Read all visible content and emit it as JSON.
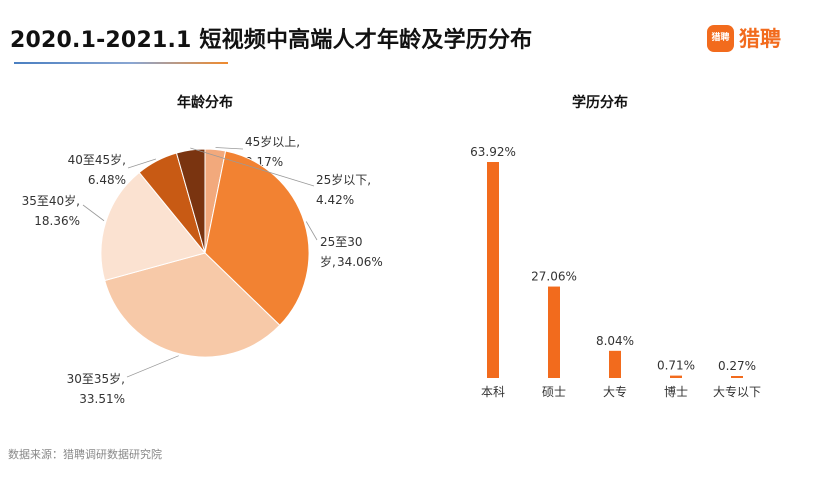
{
  "header": {
    "title": "2020.1-2021.1 短视频中高端人才年龄及学历分布",
    "logo_icon_text": "猎聘",
    "logo_text": "猎聘",
    "brand_color": "#f26b1d"
  },
  "chart_data": [
    {
      "type": "pie",
      "title": "年龄分布",
      "slices": [
        {
          "label": "45岁以上,",
          "value_label": "3.17%",
          "value": 3.17,
          "color": "#f2a97c"
        },
        {
          "label": "25至30",
          "label2": "岁,",
          "value_label": "34.06%",
          "value": 34.06,
          "color": "#f28232"
        },
        {
          "label": "30至35岁,",
          "value_label": "33.51%",
          "value": 33.51,
          "color": "#f7c9a8"
        },
        {
          "label": "35至40岁,",
          "value_label": "18.36%",
          "value": 18.36,
          "color": "#fbe2d1"
        },
        {
          "label": "40至45岁,",
          "value_label": "6.48%",
          "value": 6.48,
          "color": "#c85a14"
        },
        {
          "label": "25岁以下,",
          "value_label": "4.42%",
          "value": 4.42,
          "color": "#7a3410"
        }
      ],
      "legend": "none"
    },
    {
      "type": "bar",
      "title": "学历分布",
      "categories": [
        "本科",
        "硕士",
        "大专",
        "博士",
        "大专以下"
      ],
      "values": [
        63.92,
        27.06,
        8.04,
        0.71,
        0.27
      ],
      "value_labels": [
        "63.92%",
        "27.06%",
        "8.04%",
        "0.71%",
        "0.27%"
      ],
      "color": "#f26b1d",
      "grid": false,
      "ylim": [
        0,
        63.92
      ]
    }
  ],
  "footer": {
    "source": "数据来源：猎聘调研数据研究院"
  }
}
